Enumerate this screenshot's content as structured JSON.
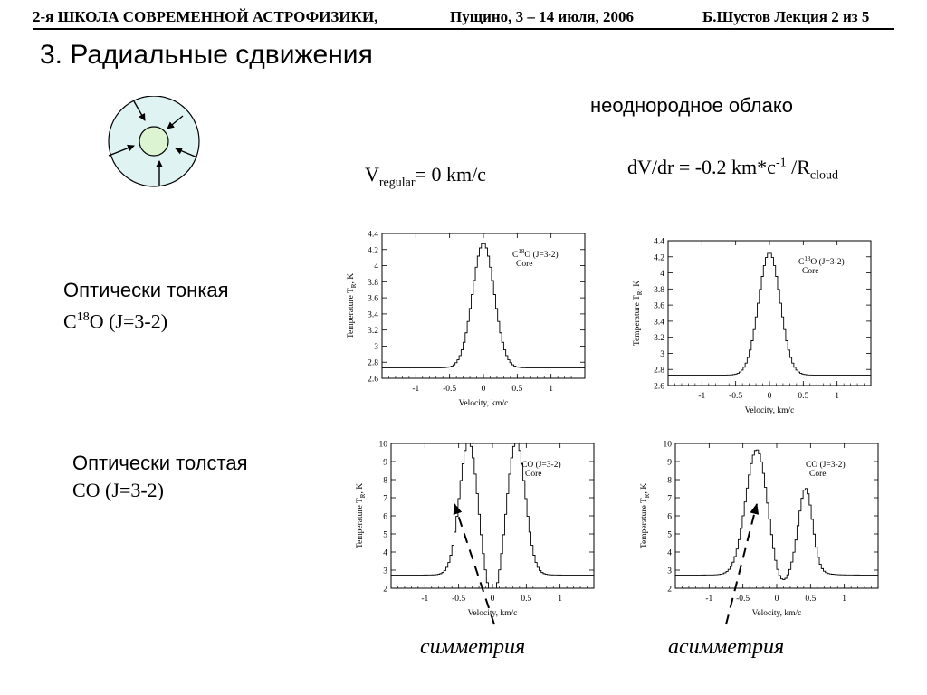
{
  "header": {
    "school": "2-я ШКОЛА СОВРЕМЕННОЙ АСТРОФИЗИКИ,",
    "place_date": "Пущино, 3 – 14 июля, 2006",
    "lecture": "Б.Шустов Лекция 2 из 5"
  },
  "title": "3. Радиальные сдвижения",
  "cloud_label": "неоднородное облако",
  "equations": {
    "v_main": "V",
    "v_sub": "regular",
    "v_rest": "= 0 km/c",
    "dv_main": "dV/dr = -0.2 km*c",
    "dv_sup": "-1",
    "dv_mid": " /R",
    "dv_sub": "cloud"
  },
  "rows": {
    "thin_title": "Оптически тонкая",
    "thin_mol_c": "C",
    "thin_mol_sup": "18",
    "thin_mol_rest": "O (J=3-2)",
    "thick_title": "Оптически толстая",
    "thick_mol": "CO (J=3-2)"
  },
  "annotations": {
    "symmetry": "симметрия",
    "asymmetry": "асимметрия"
  },
  "colors": {
    "cloud_fill": "#dff3f3",
    "core_fill": "#ddf4d2",
    "line": "#000000"
  },
  "chart_data": [
    {
      "id": "thin-static",
      "type": "line",
      "legend_l1_pre": "C",
      "legend_l1_sup": "18",
      "legend_l1_post": "O (J=3-2)",
      "legend_l2": "Core",
      "xlabel": "Velocity, km/c",
      "ylabel": "Temperature T",
      "ylabel_sub": "R",
      "ylabel_post": ", K",
      "xlim": [
        -1.5,
        1.5
      ],
      "ylim": [
        2.6,
        4.4
      ],
      "xticks": [
        -1,
        -0.5,
        0,
        0.5,
        1
      ],
      "xtick_labels": [
        "-1",
        "-0.5",
        "0",
        "0.5",
        "1"
      ],
      "yticks": [
        2.6,
        2.8,
        3,
        3.2,
        3.4,
        3.6,
        3.8,
        4,
        4.2,
        4.4
      ],
      "ytick_labels": [
        "2.6",
        "2.8",
        "3",
        "3.2",
        "3.4",
        "3.6",
        "3.8",
        "4",
        "4.2",
        "4.4"
      ],
      "baseline": 2.73,
      "components": [
        {
          "amp": 1.55,
          "center": 0.0,
          "sigma": 0.16
        }
      ]
    },
    {
      "id": "thin-collapse",
      "type": "line",
      "legend_l1_pre": "C",
      "legend_l1_sup": "18",
      "legend_l1_post": "O (J=3-2)",
      "legend_l2": "Core",
      "xlabel": "Velocity, km/c",
      "ylabel": "Temperature T",
      "ylabel_sub": "R",
      "ylabel_post": ", K",
      "xlim": [
        -1.5,
        1.5
      ],
      "ylim": [
        2.6,
        4.4
      ],
      "xticks": [
        -1,
        -0.5,
        0,
        0.5,
        1
      ],
      "xtick_labels": [
        "-1",
        "-0.5",
        "0",
        "0.5",
        "1"
      ],
      "yticks": [
        2.6,
        2.8,
        3,
        3.2,
        3.4,
        3.6,
        3.8,
        4,
        4.2,
        4.4
      ],
      "ytick_labels": [
        "2.6",
        "2.8",
        "3",
        "3.2",
        "3.4",
        "3.6",
        "3.8",
        "4",
        "4.2",
        "4.4"
      ],
      "baseline": 2.73,
      "components": [
        {
          "amp": 1.52,
          "center": 0.0,
          "sigma": 0.16
        }
      ]
    },
    {
      "id": "thick-static",
      "type": "line",
      "legend_l1_pre": "CO (J=3-2)",
      "legend_l1_sup": "",
      "legend_l1_post": "",
      "legend_l2": "Core",
      "xlabel": "Velocity, km/c",
      "ylabel": "Temperature T",
      "ylabel_sub": "R",
      "ylabel_post": ", K",
      "xlim": [
        -1.5,
        1.5
      ],
      "ylim": [
        2,
        10
      ],
      "xticks": [
        -1,
        -0.5,
        0,
        0.5,
        1
      ],
      "xtick_labels": [
        "-1",
        "-0.5",
        "0",
        "0.5",
        "1"
      ],
      "yticks": [
        2,
        3,
        4,
        5,
        6,
        7,
        8,
        9,
        10
      ],
      "ytick_labels": [
        "2",
        "3",
        "4",
        "5",
        "6",
        "7",
        "8",
        "9",
        "10"
      ],
      "baseline": 2.73,
      "components": [
        {
          "amp": 6.6,
          "center": -0.36,
          "sigma": 0.13
        },
        {
          "amp": 6.6,
          "center": 0.36,
          "sigma": 0.13
        },
        {
          "amp": 2.7,
          "center": 0.0,
          "sigma": 0.25
        }
      ]
    },
    {
      "id": "thick-collapse",
      "type": "line",
      "legend_l1_pre": "CO (J=3-2)",
      "legend_l1_sup": "",
      "legend_l1_post": "",
      "legend_l2": "Core",
      "xlabel": "Velocity, km/c",
      "ylabel": "Temperature T",
      "ylabel_sub": "R",
      "ylabel_post": ", K",
      "xlim": [
        -1.5,
        1.5
      ],
      "ylim": [
        2,
        10
      ],
      "xticks": [
        -1,
        -0.5,
        0,
        0.5,
        1
      ],
      "xtick_labels": [
        "-1",
        "-0.5",
        "0",
        "0.5",
        "1"
      ],
      "yticks": [
        2,
        3,
        4,
        5,
        6,
        7,
        8,
        9,
        10
      ],
      "ytick_labels": [
        "2",
        "3",
        "4",
        "5",
        "6",
        "7",
        "8",
        "9",
        "10"
      ],
      "baseline": 2.73,
      "components": [
        {
          "amp": 6.4,
          "center": -0.3,
          "sigma": 0.16
        },
        {
          "amp": 4.3,
          "center": 0.43,
          "sigma": 0.1
        },
        {
          "amp": 1.2,
          "center": 0.05,
          "sigma": 0.3
        }
      ]
    }
  ]
}
